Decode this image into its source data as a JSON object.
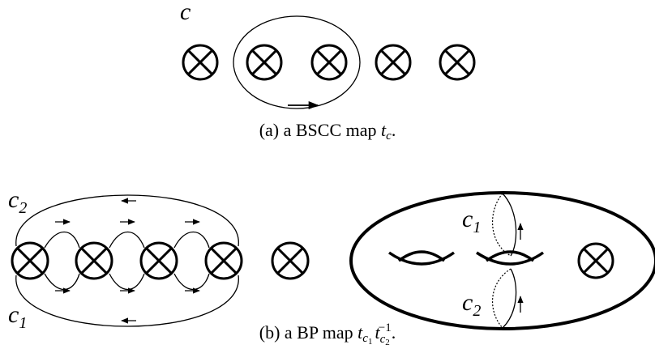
{
  "top": {
    "label": "c",
    "caption": {
      "prefix": "(a) a BSCC map",
      "math": "t",
      "sub": "c",
      "end": "."
    }
  },
  "bottom": {
    "left_labels": [
      {
        "main": "c",
        "sub": "2"
      },
      {
        "main": "c",
        "sub": "1"
      }
    ],
    "right_labels": [
      {
        "main": "c",
        "sub": "1"
      },
      {
        "main": "c",
        "sub": "2"
      }
    ],
    "caption": {
      "prefix": "(b) a BP map",
      "t1": "t",
      "t1_sub": "c",
      "t1_subsub": "1",
      "t2": "t",
      "t2_sub": "c",
      "t2_subsub": "2",
      "t2_sup": "−1",
      "end": "."
    }
  }
}
